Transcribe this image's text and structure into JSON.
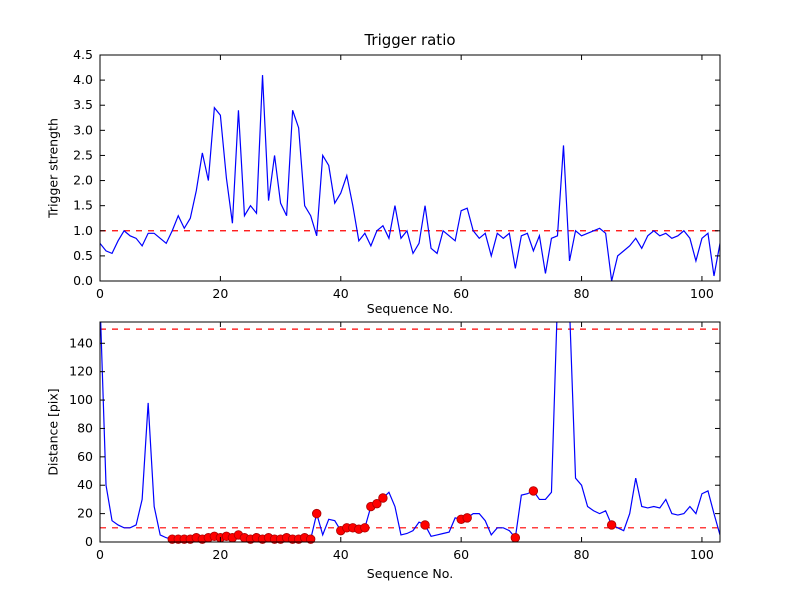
{
  "figure": {
    "background": "#ffffff"
  },
  "chart_data": [
    {
      "type": "line",
      "title": "Trigger ratio",
      "xlabel": "Sequence No.",
      "ylabel": "Trigger strength",
      "xlim": [
        0,
        103
      ],
      "ylim": [
        0,
        4.5
      ],
      "xticks": [
        "0",
        "20",
        "40",
        "60",
        "80",
        "100"
      ],
      "yticks": [
        "0.0",
        "0.5",
        "1.0",
        "1.5",
        "2.0",
        "2.5",
        "3.0",
        "3.5",
        "4.0",
        "4.5"
      ],
      "grid": false,
      "thresholds": [
        1.0
      ],
      "threshold_color": "#ff0000",
      "threshold_style": "dashed",
      "series": [
        {
          "name": "trigger-strength",
          "color": "#0000ff",
          "values": [
            0.75,
            0.6,
            0.55,
            0.8,
            1.0,
            0.9,
            0.85,
            0.7,
            0.95,
            0.95,
            0.85,
            0.75,
            1.0,
            1.3,
            1.05,
            1.25,
            1.8,
            2.55,
            2.0,
            3.45,
            3.3,
            2.05,
            1.15,
            3.4,
            1.3,
            1.5,
            1.35,
            4.1,
            1.6,
            2.5,
            1.55,
            1.3,
            3.4,
            3.05,
            1.5,
            1.3,
            0.9,
            2.5,
            2.3,
            1.55,
            1.75,
            2.1,
            1.5,
            0.8,
            0.95,
            0.7,
            1.0,
            1.1,
            0.85,
            1.5,
            0.85,
            1.0,
            0.55,
            0.75,
            1.5,
            0.65,
            0.55,
            1.0,
            0.9,
            0.8,
            1.4,
            1.45,
            1.0,
            0.85,
            0.95,
            0.5,
            0.95,
            0.85,
            0.95,
            0.25,
            0.9,
            0.95,
            0.6,
            0.9,
            0.15,
            0.85,
            0.9,
            2.7,
            0.4,
            1.0,
            0.9,
            0.95,
            1.0,
            1.05,
            0.95,
            0.0,
            0.5,
            0.6,
            0.7,
            0.85,
            0.65,
            0.9,
            1.0,
            0.9,
            0.95,
            0.85,
            0.9,
            1.0,
            0.85,
            0.4,
            0.85,
            0.95,
            0.1,
            0.75
          ]
        }
      ],
      "markers": []
    },
    {
      "type": "line",
      "title": "",
      "xlabel": "Sequence No.",
      "ylabel": "Distance [pix]",
      "xlim": [
        0,
        103
      ],
      "ylim": [
        0,
        155
      ],
      "xticks": [
        "0",
        "20",
        "40",
        "60",
        "80",
        "100"
      ],
      "yticks": [
        "0",
        "20",
        "40",
        "60",
        "80",
        "100",
        "120",
        "140"
      ],
      "grid": false,
      "thresholds": [
        10,
        150
      ],
      "threshold_color": "#ff0000",
      "threshold_style": "dashed",
      "series": [
        {
          "name": "distance",
          "color": "#0000ff",
          "values": [
            170,
            40,
            15,
            12,
            10,
            10,
            12,
            30,
            98,
            25,
            5,
            3,
            2,
            2,
            2,
            2,
            3,
            2,
            3,
            4,
            3,
            4,
            3,
            5,
            3,
            2,
            3,
            2,
            3,
            2,
            2,
            3,
            2,
            2,
            3,
            2,
            20,
            5,
            16,
            15,
            8,
            10,
            10,
            9,
            10,
            25,
            27,
            31,
            35,
            25,
            5,
            6,
            8,
            14,
            12,
            4,
            5,
            6,
            7,
            17,
            16,
            17,
            20,
            20,
            15,
            5,
            10,
            10,
            8,
            3,
            33,
            34,
            36,
            30,
            30,
            35,
            170,
            200,
            165,
            45,
            40,
            25,
            22,
            20,
            22,
            12,
            10,
            8,
            20,
            45,
            25,
            24,
            25,
            24,
            30,
            20,
            19,
            20,
            25,
            20,
            34,
            36,
            20,
            5
          ]
        }
      ],
      "marker_color": "#ff0000",
      "markers": [
        [
          12,
          2
        ],
        [
          13,
          2
        ],
        [
          14,
          2
        ],
        [
          15,
          2
        ],
        [
          16,
          3
        ],
        [
          17,
          2
        ],
        [
          18,
          3
        ],
        [
          19,
          4
        ],
        [
          20,
          3
        ],
        [
          21,
          4
        ],
        [
          22,
          3
        ],
        [
          23,
          5
        ],
        [
          24,
          3
        ],
        [
          25,
          2
        ],
        [
          26,
          3
        ],
        [
          27,
          2
        ],
        [
          28,
          3
        ],
        [
          29,
          2
        ],
        [
          30,
          2
        ],
        [
          31,
          3
        ],
        [
          32,
          2
        ],
        [
          33,
          2
        ],
        [
          34,
          3
        ],
        [
          35,
          2
        ],
        [
          36,
          20
        ],
        [
          40,
          8
        ],
        [
          41,
          10
        ],
        [
          42,
          10
        ],
        [
          43,
          9
        ],
        [
          44,
          10
        ],
        [
          45,
          25
        ],
        [
          46,
          27
        ],
        [
          47,
          31
        ],
        [
          54,
          12
        ],
        [
          60,
          16
        ],
        [
          61,
          17
        ],
        [
          69,
          3
        ],
        [
          72,
          36
        ],
        [
          85,
          12
        ]
      ]
    }
  ]
}
